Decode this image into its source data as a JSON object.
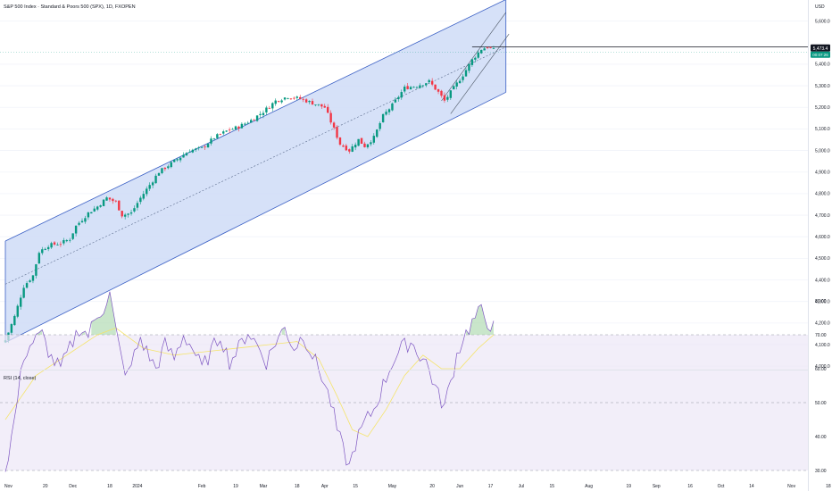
{
  "header": {
    "title": "S&P 500 Index · Standard & Poors 500 (SPX), 1D, FXOPEN"
  },
  "price_axis": {
    "currency": "USD",
    "ticks": [
      {
        "label": "5,600.0",
        "value": 5600
      },
      {
        "label": "5,400.0",
        "value": 5400
      },
      {
        "label": "5,300.0",
        "value": 5300
      },
      {
        "label": "5,200.0",
        "value": 5200
      },
      {
        "label": "5,100.0",
        "value": 5100
      },
      {
        "label": "5,000.0",
        "value": 5000
      },
      {
        "label": "4,900.0",
        "value": 4900
      },
      {
        "label": "4,800.0",
        "value": 4800
      },
      {
        "label": "4,700.0",
        "value": 4700
      },
      {
        "label": "4,600.0",
        "value": 4600
      },
      {
        "label": "4,500.0",
        "value": 4500
      },
      {
        "label": "4,400.0",
        "value": 4400
      },
      {
        "label": "4,300.0",
        "value": 4300
      },
      {
        "label": "4,200.0",
        "value": 4200
      },
      {
        "label": "4,100.0",
        "value": 4100
      },
      {
        "label": "4,000.0",
        "value": 4000
      }
    ],
    "last_price_tag": "5,473.4",
    "last_price_value": 5473,
    "sub_tag": "00:07:26"
  },
  "time_axis": {
    "ticks": [
      {
        "label": "Nov",
        "bar": 1
      },
      {
        "label": "20",
        "bar": 13
      },
      {
        "label": "Dec",
        "bar": 22
      },
      {
        "label": "18",
        "bar": 34
      },
      {
        "label": "2024",
        "bar": 43
      },
      {
        "label": "Feb",
        "bar": 64
      },
      {
        "label": "19",
        "bar": 75
      },
      {
        "label": "Mar",
        "bar": 84
      },
      {
        "label": "18",
        "bar": 95
      },
      {
        "label": "Apr",
        "bar": 104
      },
      {
        "label": "15",
        "bar": 114
      },
      {
        "label": "May",
        "bar": 126
      },
      {
        "label": "20",
        "bar": 139
      },
      {
        "label": "Jun",
        "bar": 148
      },
      {
        "label": "17",
        "bar": 158
      },
      {
        "label": "Jul",
        "bar": 168
      },
      {
        "label": "15",
        "bar": 178
      },
      {
        "label": "Aug",
        "bar": 190
      },
      {
        "label": "19",
        "bar": 203
      },
      {
        "label": "Sep",
        "bar": 212
      },
      {
        "label": "16",
        "bar": 223
      },
      {
        "label": "Oct",
        "bar": 233
      },
      {
        "label": "14",
        "bar": 243
      },
      {
        "label": "Nov",
        "bar": 256
      },
      {
        "label": "18",
        "bar": 268
      }
    ]
  },
  "rsi": {
    "label": "RSI (14, close)",
    "ticks": [
      {
        "label": "80.00",
        "value": 80
      },
      {
        "label": "70.00",
        "value": 70
      },
      {
        "label": "60.00",
        "value": 60
      },
      {
        "label": "50.00",
        "value": 50
      },
      {
        "label": "40.00",
        "value": 40
      },
      {
        "label": "30.00",
        "value": 30
      }
    ],
    "upper_band": 70,
    "middle_band": 50,
    "lower_band": 30
  },
  "colors": {
    "up": "#089981",
    "down": "#f23645",
    "channel_fill": "#cfdcf7",
    "channel_line": "#3a5fc4",
    "rsi_line": "#7e57c2",
    "rsi_ma": "#f5e46a",
    "rsi_band": "#ede7f6",
    "price_tag": "#131722",
    "sub_tag": "#089981"
  },
  "chart_data": {
    "type": "candlestick",
    "symbol": "SPX",
    "timeframe": "1D",
    "price_range": [
      4000,
      5650
    ],
    "anchors": [
      {
        "bar": 0,
        "close": 4120
      },
      {
        "bar": 3,
        "close": 4230
      },
      {
        "bar": 6,
        "close": 4370
      },
      {
        "bar": 9,
        "close": 4420
      },
      {
        "bar": 11,
        "close": 4530
      },
      {
        "bar": 14,
        "close": 4560
      },
      {
        "bar": 18,
        "close": 4570
      },
      {
        "bar": 21,
        "close": 4590
      },
      {
        "bar": 23,
        "close": 4650
      },
      {
        "bar": 27,
        "close": 4710
      },
      {
        "bar": 30,
        "close": 4740
      },
      {
        "bar": 33,
        "close": 4780
      },
      {
        "bar": 36,
        "close": 4760
      },
      {
        "bar": 38,
        "close": 4700
      },
      {
        "bar": 41,
        "close": 4710
      },
      {
        "bar": 44,
        "close": 4780
      },
      {
        "bar": 47,
        "close": 4840
      },
      {
        "bar": 50,
        "close": 4900
      },
      {
        "bar": 53,
        "close": 4930
      },
      {
        "bar": 56,
        "close": 4960
      },
      {
        "bar": 60,
        "close": 5000
      },
      {
        "bar": 64,
        "close": 5010
      },
      {
        "bar": 68,
        "close": 5060
      },
      {
        "bar": 72,
        "close": 5090
      },
      {
        "bar": 76,
        "close": 5110
      },
      {
        "bar": 80,
        "close": 5140
      },
      {
        "bar": 84,
        "close": 5180
      },
      {
        "bar": 88,
        "close": 5230
      },
      {
        "bar": 92,
        "close": 5250
      },
      {
        "bar": 96,
        "close": 5240
      },
      {
        "bar": 100,
        "close": 5220
      },
      {
        "bar": 104,
        "close": 5200
      },
      {
        "bar": 107,
        "close": 5100
      },
      {
        "bar": 109,
        "close": 5030
      },
      {
        "bar": 112,
        "close": 5000
      },
      {
        "bar": 115,
        "close": 5050
      },
      {
        "bar": 117,
        "close": 5020
      },
      {
        "bar": 120,
        "close": 5060
      },
      {
        "bar": 123,
        "close": 5160
      },
      {
        "bar": 126,
        "close": 5210
      },
      {
        "bar": 130,
        "close": 5290
      },
      {
        "bar": 134,
        "close": 5300
      },
      {
        "bar": 138,
        "close": 5320
      },
      {
        "bar": 141,
        "close": 5270
      },
      {
        "bar": 143,
        "close": 5230
      },
      {
        "bar": 146,
        "close": 5290
      },
      {
        "bar": 149,
        "close": 5350
      },
      {
        "bar": 152,
        "close": 5420
      },
      {
        "bar": 155,
        "close": 5470
      },
      {
        "bar": 157,
        "close": 5480
      },
      {
        "bar": 159,
        "close": 5465
      }
    ],
    "channel": {
      "upper": [
        {
          "bar": 0,
          "price": 4580
        },
        {
          "bar": 163,
          "price": 5700
        }
      ],
      "middle": [
        {
          "bar": 0,
          "price": 4380
        },
        {
          "bar": 163,
          "price": 5480
        }
      ],
      "lower": [
        {
          "bar": 0,
          "price": 4110
        },
        {
          "bar": 163,
          "price": 5270
        }
      ]
    },
    "wedge": {
      "upper": [
        {
          "bar": 142,
          "price": 5230
        },
        {
          "bar": 163,
          "price": 5640
        }
      ],
      "lower": [
        {
          "bar": 145,
          "price": 5170
        },
        {
          "bar": 164,
          "price": 5540
        }
      ]
    },
    "horizontal_levels": [
      {
        "price": 5480,
        "from_bar": 152,
        "to_bar": 270
      }
    ],
    "rsi_anchors": [
      {
        "bar": 0,
        "value": 30
      },
      {
        "bar": 3,
        "value": 45
      },
      {
        "bar": 6,
        "value": 64
      },
      {
        "bar": 9,
        "value": 68
      },
      {
        "bar": 12,
        "value": 70
      },
      {
        "bar": 15,
        "value": 63
      },
      {
        "bar": 18,
        "value": 60
      },
      {
        "bar": 21,
        "value": 66
      },
      {
        "bar": 24,
        "value": 72
      },
      {
        "bar": 27,
        "value": 70
      },
      {
        "bar": 30,
        "value": 76
      },
      {
        "bar": 32,
        "value": 78
      },
      {
        "bar": 34,
        "value": 82
      },
      {
        "bar": 36,
        "value": 71
      },
      {
        "bar": 38,
        "value": 62
      },
      {
        "bar": 40,
        "value": 58
      },
      {
        "bar": 42,
        "value": 64
      },
      {
        "bar": 44,
        "value": 69
      },
      {
        "bar": 46,
        "value": 65
      },
      {
        "bar": 49,
        "value": 60
      },
      {
        "bar": 52,
        "value": 67
      },
      {
        "bar": 55,
        "value": 63
      },
      {
        "bar": 58,
        "value": 70
      },
      {
        "bar": 61,
        "value": 66
      },
      {
        "bar": 64,
        "value": 60
      },
      {
        "bar": 67,
        "value": 65
      },
      {
        "bar": 70,
        "value": 70
      },
      {
        "bar": 73,
        "value": 62
      },
      {
        "bar": 76,
        "value": 66
      },
      {
        "bar": 79,
        "value": 71
      },
      {
        "bar": 82,
        "value": 67
      },
      {
        "bar": 85,
        "value": 62
      },
      {
        "bar": 88,
        "value": 68
      },
      {
        "bar": 91,
        "value": 72
      },
      {
        "bar": 94,
        "value": 66
      },
      {
        "bar": 97,
        "value": 70
      },
      {
        "bar": 100,
        "value": 64
      },
      {
        "bar": 103,
        "value": 58
      },
      {
        "bar": 106,
        "value": 50
      },
      {
        "bar": 108,
        "value": 42
      },
      {
        "bar": 110,
        "value": 36
      },
      {
        "bar": 112,
        "value": 31
      },
      {
        "bar": 114,
        "value": 38
      },
      {
        "bar": 117,
        "value": 44
      },
      {
        "bar": 120,
        "value": 48
      },
      {
        "bar": 123,
        "value": 55
      },
      {
        "bar": 126,
        "value": 62
      },
      {
        "bar": 129,
        "value": 66
      },
      {
        "bar": 132,
        "value": 68
      },
      {
        "bar": 135,
        "value": 64
      },
      {
        "bar": 137,
        "value": 62
      },
      {
        "bar": 139,
        "value": 57
      },
      {
        "bar": 141,
        "value": 52
      },
      {
        "bar": 143,
        "value": 49
      },
      {
        "bar": 145,
        "value": 56
      },
      {
        "bar": 147,
        "value": 64
      },
      {
        "bar": 149,
        "value": 69
      },
      {
        "bar": 151,
        "value": 72
      },
      {
        "bar": 153,
        "value": 75
      },
      {
        "bar": 155,
        "value": 77
      },
      {
        "bar": 157,
        "value": 74
      },
      {
        "bar": 159,
        "value": 72
      }
    ],
    "rsi_ma_anchors": [
      {
        "bar": 0,
        "value": 45
      },
      {
        "bar": 10,
        "value": 58
      },
      {
        "bar": 20,
        "value": 64
      },
      {
        "bar": 30,
        "value": 70
      },
      {
        "bar": 36,
        "value": 72
      },
      {
        "bar": 45,
        "value": 66
      },
      {
        "bar": 55,
        "value": 64
      },
      {
        "bar": 65,
        "value": 65
      },
      {
        "bar": 75,
        "value": 66
      },
      {
        "bar": 85,
        "value": 67
      },
      {
        "bar": 95,
        "value": 68
      },
      {
        "bar": 102,
        "value": 63
      },
      {
        "bar": 108,
        "value": 52
      },
      {
        "bar": 113,
        "value": 42
      },
      {
        "bar": 118,
        "value": 40
      },
      {
        "bar": 124,
        "value": 48
      },
      {
        "bar": 130,
        "value": 58
      },
      {
        "bar": 136,
        "value": 64
      },
      {
        "bar": 142,
        "value": 60
      },
      {
        "bar": 148,
        "value": 60
      },
      {
        "bar": 154,
        "value": 66
      },
      {
        "bar": 159,
        "value": 70
      }
    ],
    "rsi_range": [
      25,
      85
    ]
  }
}
